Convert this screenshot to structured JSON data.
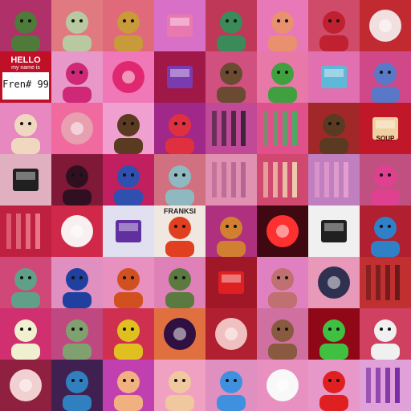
{
  "tiles": [
    {
      "name": "alien-astronaut",
      "bg": "#b0306a",
      "accent": "#4e7a3a"
    },
    {
      "name": "astronaut-sketch",
      "bg": "#e07a80",
      "accent": "#b8c8a0"
    },
    {
      "name": "pixel-punk-crown",
      "bg": "#e06a7a",
      "accent": "#c89a3a"
    },
    {
      "name": "pink-box",
      "bg": "#d870c8",
      "accent": "#e878b0"
    },
    {
      "name": "pixel-frog-glasses",
      "bg": "#c03858",
      "accent": "#3a8a5a"
    },
    {
      "name": "anime-girl",
      "bg": "#e878b8",
      "accent": "#e89070"
    },
    {
      "name": "dino-sword",
      "bg": "#d04a6a",
      "accent": "#c02030"
    },
    {
      "name": "smoke-cloud",
      "bg": "#c02a30",
      "accent": "#f2e0e0"
    },
    {
      "name": "hello-name-tag",
      "bg": "#c01028",
      "accent": "#ffffff"
    },
    {
      "name": "pink-bear",
      "bg": "#e898c8",
      "accent": "#d02878"
    },
    {
      "name": "pink-flower",
      "bg": "#f078b8",
      "accent": "#e02870"
    },
    {
      "name": "tv-head",
      "bg": "#a01848",
      "accent": "#7a3ab0"
    },
    {
      "name": "bearded-man",
      "bg": "#d05080",
      "accent": "#6a4a30"
    },
    {
      "name": "green-cap-monster",
      "bg": "#e878a8",
      "accent": "#40a040"
    },
    {
      "name": "water-bottle",
      "bg": "#e070b0",
      "accent": "#60b8d8"
    },
    {
      "name": "blue-dog",
      "bg": "#d04888",
      "accent": "#5a78c8"
    },
    {
      "name": "sunglasses-man",
      "bg": "#e888c0",
      "accent": "#f0d8c0"
    },
    {
      "name": "skull-robot",
      "bg": "#f06aa0",
      "accent": "#e8a0b0"
    },
    {
      "name": "top-hat-man",
      "bg": "#f0a0d0",
      "accent": "#5a3a20"
    },
    {
      "name": "spider-web-crab",
      "bg": "#a02888",
      "accent": "#e03040"
    },
    {
      "name": "girl-silhouette",
      "bg": "#c04a98",
      "accent": "#302030"
    },
    {
      "name": "geometric-shapes",
      "bg": "#e0508a",
      "accent": "#40b060"
    },
    {
      "name": "lion-head",
      "bg": "#a02828",
      "accent": "#5a3a20"
    },
    {
      "name": "soup-can",
      "bg": "#c01828",
      "accent": "#f0d0a0"
    },
    {
      "name": "sneaker",
      "bg": "#e0b0c0",
      "accent": "#202020"
    },
    {
      "name": "dark-helmet",
      "bg": "#801838",
      "accent": "#301020"
    },
    {
      "name": "blue-monster",
      "bg": "#c02060",
      "accent": "#3050b0"
    },
    {
      "name": "ape-mask",
      "bg": "#d07080",
      "accent": "#90b8c0"
    },
    {
      "name": "pink-city",
      "bg": "#e090b0",
      "accent": "#b06090"
    },
    {
      "name": "abstract-form",
      "bg": "#d04870",
      "accent": "#f0d8b0"
    },
    {
      "name": "pink-elephant-art",
      "bg": "#c080c0",
      "accent": "#e8a0d0"
    },
    {
      "name": "helmet-rider",
      "bg": "#c05080",
      "accent": "#e04090"
    },
    {
      "name": "flamingos",
      "bg": "#c02040",
      "accent": "#f08090"
    },
    {
      "name": "red-clock",
      "bg": "#d02848",
      "accent": "#f8f0f0"
    },
    {
      "name": "mech-poster",
      "bg": "#e0e0f0",
      "accent": "#6030a0"
    },
    {
      "name": "franksi-octopus",
      "bg": "#f0e8e0",
      "accent": "#e04020"
    },
    {
      "name": "mushroom-glasses",
      "bg": "#b03080",
      "accent": "#d08030"
    },
    {
      "name": "neon-phone",
      "bg": "#400810",
      "accent": "#ff3030"
    },
    {
      "name": "qr-document",
      "bg": "#f0f0f0",
      "accent": "#202020"
    },
    {
      "name": "blue-demon",
      "bg": "#b02030",
      "accent": "#3080c8"
    },
    {
      "name": "tank-robot",
      "bg": "#d04878",
      "accent": "#60a088"
    },
    {
      "name": "bow-girl",
      "bg": "#e090c0",
      "accent": "#2040a0"
    },
    {
      "name": "red-panda",
      "bg": "#e890c0",
      "accent": "#d05020"
    },
    {
      "name": "soldier-bandage",
      "bg": "#e080b8",
      "accent": "#5a7a40"
    },
    {
      "name": "slot-machine",
      "bg": "#a01828",
      "accent": "#e02020"
    },
    {
      "name": "cat-jacket",
      "bg": "#e080c0",
      "accent": "#c07070"
    },
    {
      "name": "crack-lines",
      "bg": "#e898b8",
      "accent": "#303050"
    },
    {
      "name": "dark-abstract",
      "bg": "#c03030",
      "accent": "#601818"
    },
    {
      "name": "flame-skull",
      "bg": "#d03070",
      "accent": "#f0f0d0"
    },
    {
      "name": "zombie-man",
      "bg": "#c04880",
      "accent": "#80a070"
    },
    {
      "name": "luchador-mask",
      "bg": "#d03050",
      "accent": "#e0c020"
    },
    {
      "name": "eye-vortex",
      "bg": "#e07040",
      "accent": "#301040"
    },
    {
      "name": "red-target",
      "bg": "#b02030",
      "accent": "#f0c0c0"
    },
    {
      "name": "bear-suit",
      "bg": "#d070a0",
      "accent": "#8a5a40"
    },
    {
      "name": "green-bird",
      "bg": "#900818",
      "accent": "#40c040"
    },
    {
      "name": "stork-hat",
      "bg": "#d04060",
      "accent": "#f0f0f0"
    },
    {
      "name": "tunnel-orb",
      "bg": "#902040",
      "accent": "#f0d0d0"
    },
    {
      "name": "cyber-woman",
      "bg": "#402050",
      "accent": "#3080c0"
    },
    {
      "name": "pinup-girl",
      "bg": "#c040b0",
      "accent": "#f0b080"
    },
    {
      "name": "baby-sticker",
      "bg": "#f0a0c0",
      "accent": "#f0c8a0"
    },
    {
      "name": "blue-bunny",
      "bg": "#e090c0",
      "accent": "#4090e0"
    },
    {
      "name": "white-egg",
      "bg": "#e890c0",
      "accent": "#f8f8f8"
    },
    {
      "name": "red-character",
      "bg": "#e898c8",
      "accent": "#e02020"
    },
    {
      "name": "purple-splash",
      "bg": "#e0a0d8",
      "accent": "#7020a0"
    }
  ],
  "hello_tag": {
    "line1": "HELLO",
    "line2": "my name is",
    "line3": "Fren# 99"
  },
  "franksi_label": "FRANKSI",
  "soup_label": "SOUP"
}
